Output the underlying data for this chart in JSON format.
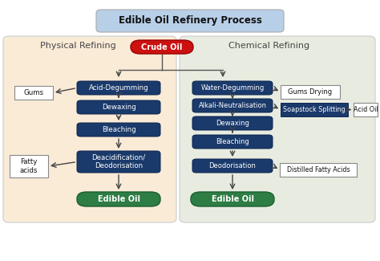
{
  "title": "Edible Oil Refinery Process",
  "title_bg": "#b8cfe8",
  "crude_oil_label": "Crude Oil",
  "crude_oil_color": "#cc1111",
  "physical_label": "Physical Refining",
  "chemical_label": "Chemical Refining",
  "physical_bg": "#faebd7",
  "chemical_bg": "#e8ece0",
  "main_box_color": "#1a3a6b",
  "edible_oil_color": "#2e7d45",
  "physical_steps": [
    "Acid-Degumming",
    "Dewaxing",
    "Bleaching",
    "Deacidification/\nDeodorisation"
  ],
  "chemical_steps": [
    "Water-Degumming",
    "Alkali-Neutralisation",
    "Dewaxing",
    "Bleaching",
    "Deodorisation"
  ],
  "fig_w": 4.74,
  "fig_h": 3.25,
  "dpi": 100
}
